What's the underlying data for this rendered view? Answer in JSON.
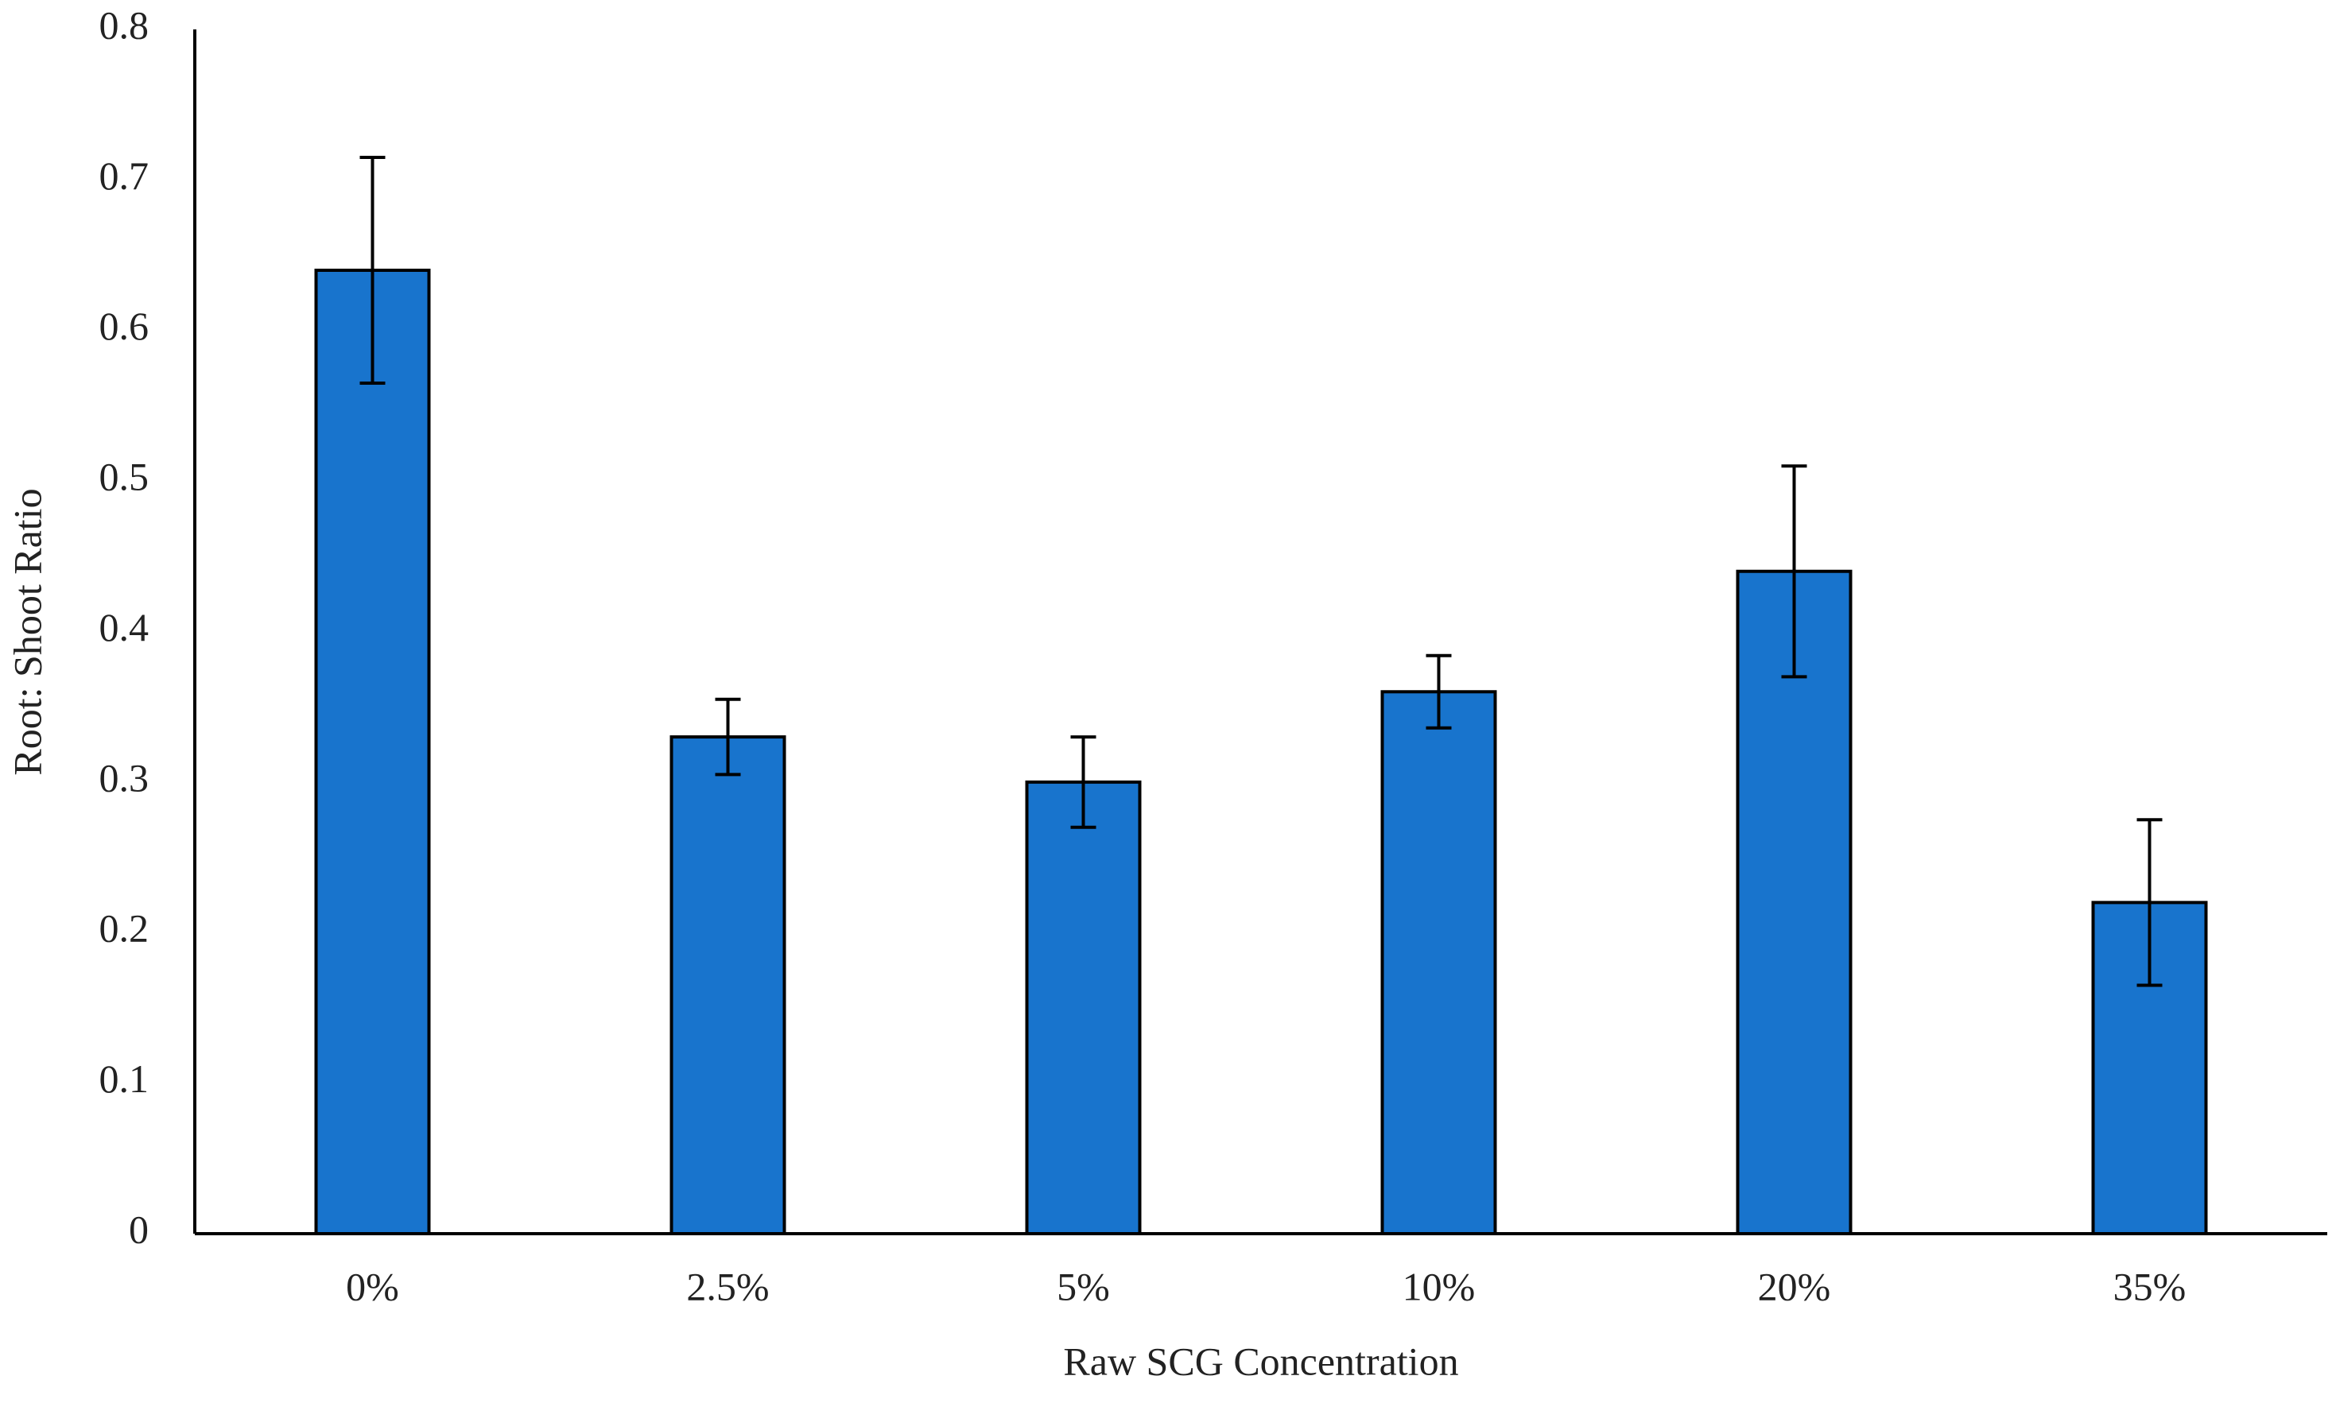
{
  "chart_data": {
    "type": "bar",
    "x_label": "Raw SCG Concentration",
    "y_label": "Root: Shoot Ratio",
    "categories": [
      "0%",
      "2.5%",
      "5%",
      "10%",
      "20%",
      "35%"
    ],
    "values": [
      0.64,
      0.33,
      0.3,
      0.36,
      0.44,
      0.22
    ],
    "errors": [
      0.075,
      0.025,
      0.03,
      0.024,
      0.07,
      0.055
    ],
    "color": "#1874cd",
    "ylim": [
      0,
      0.8
    ],
    "yticks": [
      0,
      0.1,
      0.2,
      0.3,
      0.4,
      0.5,
      0.6,
      0.7,
      0.8
    ],
    "grid": false
  }
}
